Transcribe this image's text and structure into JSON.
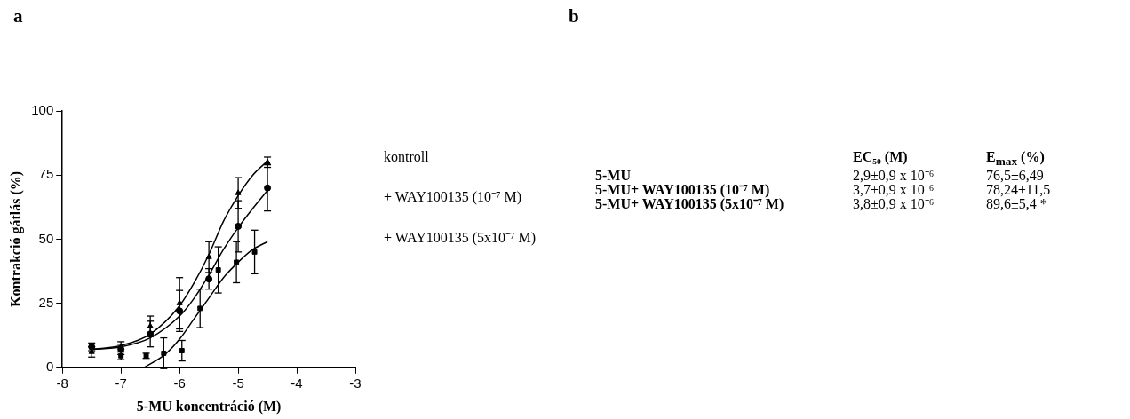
{
  "chart_data": [
    {
      "type": "scatter",
      "xlabel": "5-MU koncentráció (M)",
      "ylabel": "Kontrakció gátlás (%)",
      "annotations": [
        "a"
      ],
      "xlim": [
        -8,
        -3
      ],
      "xticks": [
        -8,
        -7,
        -6,
        -5,
        -4,
        -3
      ],
      "ylim": [
        0,
        100
      ],
      "yticks": [
        0,
        25,
        50,
        75,
        100
      ],
      "grid": false,
      "legend": "right",
      "series": [
        {
          "name": "kontroll",
          "type": "scatter",
          "marker": "triangle",
          "color": "#000000",
          "x": [
            -7.5,
            -7,
            -6.5,
            -6,
            -5.5,
            -5,
            -4.5
          ],
          "values": [
            6,
            8,
            16,
            25,
            43,
            68,
            80
          ],
          "errors": [
            2,
            2,
            4,
            10,
            6,
            6,
            2
          ]
        },
        {
          "name": "+ WAY100135 (10⁻⁷ M)",
          "type": "scatter",
          "marker": "circle",
          "color": "#000000",
          "x": [
            -7.5,
            -7,
            -6.5,
            -6,
            -5.5,
            -5,
            -4.5
          ],
          "values": [
            8,
            7,
            13,
            22,
            34.5,
            55,
            70
          ],
          "errors": [
            1.5,
            2,
            5,
            8,
            4,
            10,
            9
          ]
        },
        {
          "name": "+ WAY100135 (5x10⁻⁷ M)",
          "type": "scatter",
          "marker": "square",
          "color": "#000000",
          "x": [
            -7,
            -6.57,
            -6.27,
            -5.96,
            -5.65,
            -5.34,
            -5.03,
            -4.72
          ],
          "values": [
            4.5,
            4.5,
            5.5,
            6.5,
            23,
            38,
            41,
            45
          ],
          "errors": [
            1.5,
            1,
            6,
            4,
            7.5,
            9,
            8,
            8.5
          ]
        },
        {
          "type": "line",
          "marker": "none",
          "color": "#000000",
          "x": [
            -7.5,
            -7,
            -6.5,
            -6,
            -5.75,
            -5.5,
            -5.25,
            -5,
            -4.75,
            -4.5
          ],
          "values": [
            7,
            8.5,
            13,
            24,
            33,
            44,
            57,
            67,
            75,
            80.5
          ]
        },
        {
          "type": "line",
          "marker": "none",
          "color": "#000000",
          "x": [
            -7.5,
            -7,
            -6.5,
            -6,
            -5.75,
            -5.5,
            -5.25,
            -5,
            -4.75,
            -4.5
          ],
          "values": [
            7,
            8,
            11.5,
            20,
            27,
            36,
            46,
            54.5,
            62,
            69
          ]
        },
        {
          "type": "line",
          "marker": "none",
          "color": "#000000",
          "x": [
            -6.6,
            -6.25,
            -6,
            -5.75,
            -5.5,
            -5.25,
            -5,
            -4.75,
            -4.5
          ],
          "values": [
            0,
            5,
            11,
            19,
            27,
            35,
            41,
            46,
            49
          ]
        }
      ]
    },
    {
      "type": "other",
      "annotations": [
        "b",
        "EC₅₀ (M)",
        "E$_{max}$ (%)",
        "5-MU",
        "2,9±0,9 x 10⁻⁶",
        "76,5±6,49",
        "5-MU+ WAY100135 (10⁻⁷ M)",
        "3,7±0,9 x 10⁻⁶",
        "78,24±11,5",
        "5-MU+ WAY100135 (5x10⁻⁷ M)",
        "3,8±0,9 x 10⁻⁶",
        "89,6±5,4 *"
      ]
    }
  ]
}
